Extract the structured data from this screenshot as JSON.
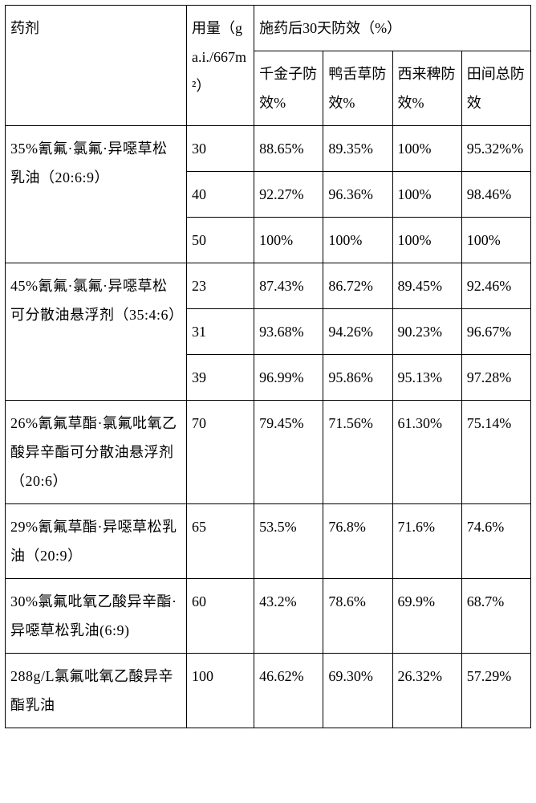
{
  "table": {
    "header": {
      "agent": "药剂",
      "dose": "用量（ga.i./667m²）",
      "effect_group": "施药后30天防效（%）",
      "cols": [
        "千金子防效%",
        "鸭舌草防效%",
        "西来稗防效%",
        "田间总防效"
      ]
    },
    "rows": [
      {
        "agent": "35%氰氟·氯氟·异噁草松乳油（20:6:9）",
        "dose": "30",
        "vals": [
          "88.65%",
          "89.35%",
          "100%",
          "95.32%%"
        ]
      },
      {
        "agent": "",
        "dose": "40",
        "vals": [
          "92.27%",
          "96.36%",
          "100%",
          "98.46%"
        ]
      },
      {
        "agent": "",
        "dose": "50",
        "vals": [
          "100%",
          "100%",
          "100%",
          "100%"
        ]
      },
      {
        "agent": "45%氰氟·氯氟·异噁草松可分散油悬浮剂（35:4:6）",
        "dose": "23",
        "vals": [
          "87.43%",
          "86.72%",
          "89.45%",
          "92.46%"
        ]
      },
      {
        "agent": "",
        "dose": "31",
        "vals": [
          "93.68%",
          "94.26%",
          "90.23%",
          "96.67%"
        ]
      },
      {
        "agent": "",
        "dose": "39",
        "vals": [
          "96.99%",
          "95.86%",
          "95.13%",
          "97.28%"
        ]
      },
      {
        "agent": "26%氰氟草酯·氯氟吡氧乙酸异辛酯可分散油悬浮剂（20:6）",
        "dose": "70",
        "vals": [
          "79.45%",
          "71.56%",
          "61.30%",
          "75.14%"
        ]
      },
      {
        "agent": "29%氰氟草酯·异噁草松乳油（20:9）",
        "dose": "65",
        "vals": [
          "53.5%",
          "76.8%",
          "71.6%",
          "74.6%"
        ]
      },
      {
        "agent": "30%氯氟吡氧乙酸异辛酯·异噁草松乳油(6:9)",
        "dose": "60",
        "vals": [
          "43.2%",
          "78.6%",
          "69.9%",
          "68.7%"
        ]
      },
      {
        "agent": "288g/L氯氟吡氧乙酸异辛酯乳油",
        "dose": "100",
        "vals": [
          "46.62%",
          "69.30%",
          "26.32%",
          "57.29%"
        ]
      }
    ],
    "colors": {
      "background": "#ffffff",
      "border": "#000000",
      "text": "#000000"
    },
    "font_size_pt": 14
  }
}
